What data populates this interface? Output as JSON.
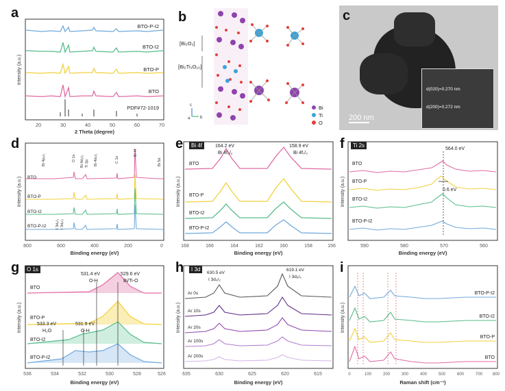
{
  "panels": {
    "a": {
      "letter": "a",
      "series": [
        "BTO-P-I2",
        "BTO-I2",
        "BTO-P",
        "BTO"
      ],
      "ref": "PDF#72-1019",
      "xlabel": "2 Theta (degree)",
      "ylabel": "Intensity (a.u.)",
      "xticks": [
        "20",
        "30",
        "40",
        "50",
        "60",
        "70"
      ],
      "colors": [
        "#6fa8dc",
        "#57bb8a",
        "#f1d13a",
        "#e06aa3"
      ]
    },
    "b": {
      "letter": "b",
      "layer1": "[Bi₂O₂]",
      "layer2": "[Bi₂Ti₃O₁₀]",
      "legend": [
        {
          "el": "Bi",
          "color": "#8e44ad"
        },
        {
          "el": "Ti",
          "color": "#3aa3d9"
        },
        {
          "el": "O",
          "color": "#e0403b"
        }
      ],
      "axes": [
        "c",
        "a",
        "b"
      ]
    },
    "c": {
      "letter": "c",
      "scale": "200 nm",
      "d1": "d(020)=0.270 nm",
      "d2": "d(200)=0.272 nm"
    },
    "d": {
      "letter": "d",
      "series": [
        "BTO",
        "BTO-P",
        "BTO-I2",
        "BTO-P-I2"
      ],
      "peaks": [
        "Bi 4p₃/₂",
        "O 1s",
        "Bi 4d₃/₂",
        "Ti 2p",
        "Bi 4d₅/₂",
        "C 1s",
        "Bi 4f",
        "Bi 5d",
        "I 3d₃/₂",
        "I 3d₅/₂"
      ],
      "xlabel": "Binding energy (eV)",
      "ylabel": "Intensity (a.u.)",
      "xticks": [
        "800",
        "600",
        "400",
        "200",
        "0"
      ]
    },
    "e": {
      "letter": "e",
      "tag": "Bi 4f",
      "series": [
        "BTO",
        "BTO-P",
        "BTO-I2",
        "BTO-P-I2"
      ],
      "p1": "164.2 eV",
      "p1lbl": "Bi 4f₅/₂",
      "p2": "158.9 eV",
      "p2lbl": "Bi 4f₇/₂",
      "xlabel": "Binding energy (eV)",
      "ylabel": "Intensity (a.u.)",
      "xticks": [
        "168",
        "166",
        "164",
        "162",
        "160",
        "158",
        "156"
      ]
    },
    "f": {
      "letter": "f",
      "tag": "Ti 2s",
      "series": [
        "BTO",
        "BTO-P",
        "BTO-I2",
        "BTO-P-I2"
      ],
      "peak": "564.0 eV",
      "shift": "0.6 eV",
      "xlabel": "Binding energy (eV)",
      "ylabel": "Intensity (a.u.)",
      "xticks": [
        "590",
        "580",
        "570",
        "560"
      ]
    },
    "g": {
      "letter": "g",
      "tag": "O 1s",
      "series": [
        "BTO",
        "BTO-P",
        "BTO-I2",
        "BTO-P-I2"
      ],
      "p1": "531.4 eV",
      "p1lbl": "O-H",
      "p2": "529.6 eV",
      "p2lbl": "Bi/Ti-O",
      "p3": "533.3 eV",
      "p3lbl": "H₂O",
      "p4": "531.9 eV",
      "p4lbl": "O-H",
      "xlabel": "Binding energy (eV)",
      "ylabel": "Intensity (a.u.)",
      "xticks": [
        "536",
        "534",
        "532",
        "530",
        "528",
        "526"
      ]
    },
    "h": {
      "letter": "h",
      "tag": "I 3d",
      "series": [
        "Ar 0s",
        "Ar 10s",
        "Ar 20s",
        "Ar 100s",
        "Ar 200s"
      ],
      "p1": "630.5 eV",
      "p1lbl": "I 3d₃/₂",
      "p2": "619.1 eV",
      "p2lbl": "I 3d₅/₂",
      "xlabel": "Binding energy (eV)",
      "ylabel": "Intensity (a.u.)",
      "xticks": [
        "635",
        "630",
        "625",
        "620",
        "615"
      ]
    },
    "i": {
      "letter": "i",
      "series": [
        "BTO-P-I2",
        "BTO-I2",
        "BTO-P",
        "BTO"
      ],
      "xlabel": "Raman shift (cm⁻¹)",
      "ylabel": "Intensity (a.u.)",
      "xticks": [
        "0",
        "100",
        "200",
        "300",
        "400",
        "500",
        "600",
        "700",
        "800"
      ]
    }
  }
}
